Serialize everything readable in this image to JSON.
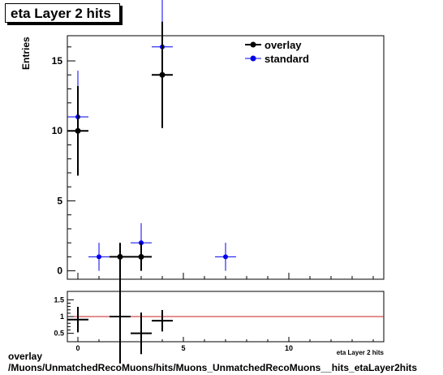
{
  "chart_data": [
    {
      "type": "scatter",
      "title": "eta Layer 2 hits",
      "ylabel": "Entries",
      "xlim": [
        -0.5,
        14.5
      ],
      "ylim": [
        -0.6,
        16.8
      ],
      "yticks": [
        0,
        5,
        10,
        15
      ],
      "series": [
        {
          "name": "overlay",
          "color": "#000000",
          "points": [
            {
              "x": 0,
              "xerr": 0.5,
              "y": 10,
              "yerr": 3.2
            },
            {
              "x": 2,
              "xerr": 0.5,
              "y": 1,
              "yerr": 1.0
            },
            {
              "x": 3,
              "xerr": 0.5,
              "y": 1,
              "yerr": 1.0
            },
            {
              "x": 4,
              "xerr": 0.5,
              "y": 14,
              "yerr": 3.8
            }
          ]
        },
        {
          "name": "standard",
          "color": "#0000ee",
          "points": [
            {
              "x": 0,
              "xerr": 0.5,
              "y": 11,
              "yerr": 3.3
            },
            {
              "x": 1,
              "xerr": 0.5,
              "y": 1,
              "yerr": 1.0
            },
            {
              "x": 3,
              "xerr": 0.5,
              "y": 2,
              "yerr": 1.4
            },
            {
              "x": 4,
              "xerr": 0.5,
              "y": 16,
              "yerr": 4.0
            },
            {
              "x": 7,
              "xerr": 0.5,
              "y": 1,
              "yerr": 1.0
            }
          ]
        }
      ],
      "legend": {
        "placement": "top-right",
        "entries": [
          "overlay",
          "standard"
        ]
      }
    },
    {
      "type": "scatter",
      "title": "",
      "xlim": [
        -0.5,
        14.5
      ],
      "ylim": [
        0.25,
        1.75
      ],
      "xticks": [
        0,
        5,
        10
      ],
      "yticks": [
        0.5,
        1,
        1.5
      ],
      "ytick_labels": [
        "0.5",
        "1",
        "1.5"
      ],
      "reference_line": 1,
      "reference_color": "#cc2222",
      "xlabel": "eta Layer 2 hits",
      "series": [
        {
          "name": "",
          "color": "#000000",
          "points": [
            {
              "x": 0,
              "xerr": 0.5,
              "y": 0.91,
              "yerr": 0.38
            },
            {
              "x": 2,
              "xerr": 0.5,
              "y": 1.0,
              "yerr": 1.4
            },
            {
              "x": 3,
              "xerr": 0.5,
              "y": 0.5,
              "yerr": 0.62
            },
            {
              "x": 4,
              "xerr": 0.5,
              "y": 0.875,
              "yerr": 0.32
            }
          ]
        }
      ]
    }
  ],
  "footer": {
    "line1": "overlay",
    "line2": "/Muons/UnmatchedRecoMuons/hits/Muons_UnmatchedRecoMuons__hits_etaLayer2hits"
  }
}
